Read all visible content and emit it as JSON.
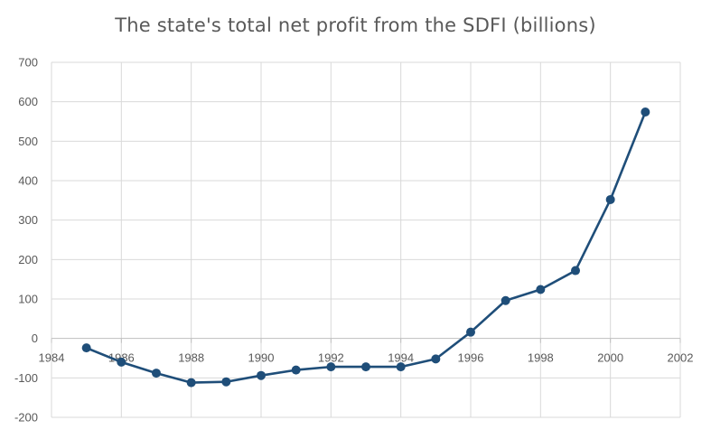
{
  "chart_data": {
    "type": "scatter",
    "title": "The state's total net profit from the SDFI (billions)",
    "xlabel": "",
    "ylabel": "",
    "xlim": [
      1984,
      2002
    ],
    "ylim": [
      -200,
      700
    ],
    "x_ticks": [
      1984,
      1986,
      1988,
      1990,
      1992,
      1994,
      1996,
      1998,
      2000,
      2002
    ],
    "y_ticks": [
      -200,
      -100,
      0,
      100,
      200,
      300,
      400,
      500,
      600,
      700
    ],
    "grid": true,
    "legend": "none",
    "line_style": "straight-lines-with-markers",
    "series": [
      {
        "color": "#1f4e79",
        "x": [
          1985,
          1986,
          1987,
          1988,
          1989,
          1990,
          1991,
          1992,
          1993,
          1994,
          1995,
          1996,
          1997,
          1998,
          1999,
          2000,
          2001
        ],
        "y": [
          -24,
          -60,
          -88,
          -112,
          -110,
          -94,
          -80,
          -72,
          -72,
          -72,
          -52,
          16,
          96,
          124,
          172,
          352,
          574
        ]
      }
    ]
  }
}
